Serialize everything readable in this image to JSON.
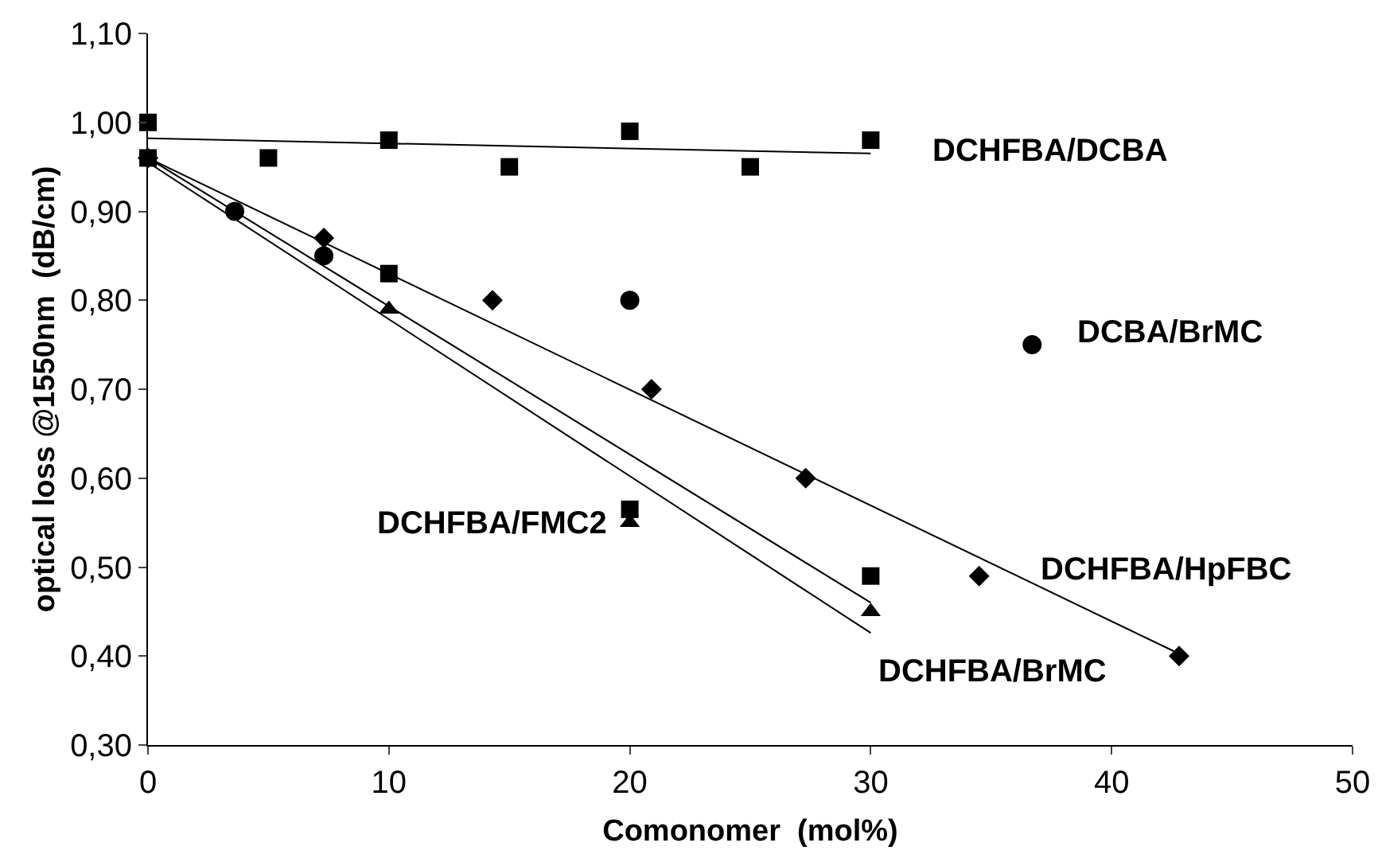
{
  "chart_data": {
    "type": "scatter",
    "xlabel": "Comonomer  (mol%)",
    "ylabel": "optical loss @1550nm  (dB/cm)",
    "xlim": [
      0,
      50
    ],
    "xticks": [
      0,
      10,
      20,
      30,
      40,
      50
    ],
    "ylim": [
      0.3,
      1.1
    ],
    "yticks": [
      {
        "value": 0.3,
        "label": "0,30"
      },
      {
        "value": 0.4,
        "label": "0,40"
      },
      {
        "value": 0.5,
        "label": "0,50"
      },
      {
        "value": 0.6,
        "label": "0,60"
      },
      {
        "value": 0.7,
        "label": "0,70"
      },
      {
        "value": 0.8,
        "label": "0,80"
      },
      {
        "value": 0.9,
        "label": "0,90"
      },
      {
        "value": 1.0,
        "label": "1,00"
      },
      {
        "value": 1.1,
        "label": "1,10"
      }
    ],
    "series": [
      {
        "name": "DCHFBA/DCBA",
        "color": "#000000",
        "marker": "square",
        "x": [
          0,
          5,
          10,
          15,
          20,
          25,
          30
        ],
        "values": [
          1.0,
          0.96,
          0.98,
          0.95,
          0.99,
          0.95,
          0.98
        ]
      },
      {
        "name": "DCBA/BrMC",
        "color": "#000000",
        "marker": "circle",
        "x": [
          3.6,
          7.3,
          20,
          36.7
        ],
        "values": [
          0.9,
          0.85,
          0.8,
          0.75
        ]
      },
      {
        "name": "DCHFBA/HpFBC",
        "color": "#000000",
        "marker": "diamond",
        "x": [
          0,
          7.3,
          14.3,
          20.9,
          27.3,
          34.5,
          42.8
        ],
        "values": [
          0.96,
          0.87,
          0.8,
          0.7,
          0.6,
          0.49,
          0.4
        ]
      },
      {
        "name": "DCHFBA/BrMC",
        "color": "#000000",
        "marker": "triangle",
        "x": [
          10,
          20,
          30
        ],
        "values": [
          0.79,
          0.55,
          0.45
        ]
      },
      {
        "name": "DCHFBA/FMC2",
        "color": "#000000",
        "marker": "square",
        "x": [
          0,
          10,
          20,
          30
        ],
        "values": [
          0.96,
          0.83,
          0.565,
          0.49
        ]
      },
      {
        "type": "line",
        "color": "#000000",
        "line_style": "solid",
        "marker": "none",
        "x": [
          0,
          30
        ],
        "values": [
          0.982,
          0.965
        ]
      },
      {
        "type": "line",
        "color": "#000000",
        "line_style": "solid",
        "marker": "none",
        "x": [
          0,
          43
        ],
        "values": [
          0.96,
          0.4
        ]
      },
      {
        "type": "line",
        "color": "#000000",
        "line_style": "solid",
        "marker": "none",
        "x": [
          0,
          30
        ],
        "values": [
          0.96,
          0.46
        ]
      },
      {
        "type": "line",
        "color": "#000000",
        "line_style": "solid",
        "marker": "none",
        "x": [
          0,
          30
        ],
        "values": [
          0.955,
          0.426
        ]
      }
    ]
  }
}
